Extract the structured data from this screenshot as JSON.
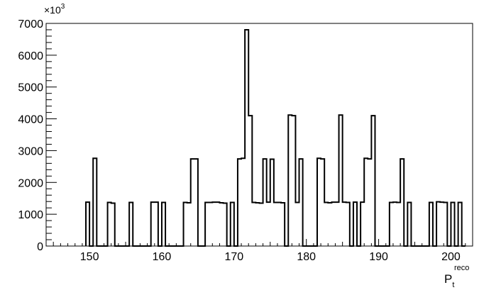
{
  "chart_data": {
    "type": "histogram",
    "xlim": [
      144,
      203
    ],
    "ylim": [
      0,
      7000
    ],
    "bin_width": 0.5,
    "x_ticks": [
      150,
      160,
      170,
      180,
      190,
      200
    ],
    "y_ticks": [
      0,
      1000,
      2000,
      3000,
      4000,
      5000,
      6000,
      7000
    ],
    "y_multiplier": {
      "base": "×10",
      "exponent": "3"
    },
    "xlabel": {
      "main": "P",
      "sub": "t",
      "sup": "reco"
    },
    "ylabel": "",
    "title": "",
    "grid": false,
    "bins": [
      {
        "x": 149.5,
        "y": 1380
      },
      {
        "x": 150.0,
        "y": 0
      },
      {
        "x": 150.5,
        "y": 2760
      },
      {
        "x": 151.0,
        "y": 0
      },
      {
        "x": 152.0,
        "y": 0
      },
      {
        "x": 152.5,
        "y": 1370
      },
      {
        "x": 153.0,
        "y": 1350
      },
      {
        "x": 153.5,
        "y": 0
      },
      {
        "x": 155.5,
        "y": 1370
      },
      {
        "x": 156.0,
        "y": 0
      },
      {
        "x": 158.5,
        "y": 1380
      },
      {
        "x": 159.0,
        "y": 1380
      },
      {
        "x": 159.5,
        "y": 0
      },
      {
        "x": 160.0,
        "y": 1370
      },
      {
        "x": 160.5,
        "y": 0
      },
      {
        "x": 163.0,
        "y": 1370
      },
      {
        "x": 163.5,
        "y": 1360
      },
      {
        "x": 164.0,
        "y": 2740
      },
      {
        "x": 164.5,
        "y": 2740
      },
      {
        "x": 165.0,
        "y": 0
      },
      {
        "x": 166.0,
        "y": 1370
      },
      {
        "x": 166.5,
        "y": 1370
      },
      {
        "x": 167.0,
        "y": 1380
      },
      {
        "x": 167.5,
        "y": 1380
      },
      {
        "x": 168.0,
        "y": 1360
      },
      {
        "x": 168.5,
        "y": 1350
      },
      {
        "x": 169.0,
        "y": 0
      },
      {
        "x": 169.5,
        "y": 1370
      },
      {
        "x": 170.0,
        "y": 0
      },
      {
        "x": 170.5,
        "y": 2740
      },
      {
        "x": 171.0,
        "y": 2760
      },
      {
        "x": 171.5,
        "y": 6800
      },
      {
        "x": 172.0,
        "y": 4100
      },
      {
        "x": 172.5,
        "y": 1370
      },
      {
        "x": 173.0,
        "y": 1360
      },
      {
        "x": 173.5,
        "y": 1350
      },
      {
        "x": 174.0,
        "y": 2740
      },
      {
        "x": 174.5,
        "y": 1380
      },
      {
        "x": 175.0,
        "y": 2730
      },
      {
        "x": 175.5,
        "y": 1370
      },
      {
        "x": 176.0,
        "y": 1370
      },
      {
        "x": 176.5,
        "y": 1360
      },
      {
        "x": 177.0,
        "y": 0
      },
      {
        "x": 177.5,
        "y": 4120
      },
      {
        "x": 178.0,
        "y": 4100
      },
      {
        "x": 178.5,
        "y": 1370
      },
      {
        "x": 179.0,
        "y": 2740
      },
      {
        "x": 179.5,
        "y": 0
      },
      {
        "x": 181.5,
        "y": 2760
      },
      {
        "x": 182.0,
        "y": 2740
      },
      {
        "x": 182.5,
        "y": 1370
      },
      {
        "x": 183.0,
        "y": 1360
      },
      {
        "x": 183.5,
        "y": 1380
      },
      {
        "x": 184.0,
        "y": 1380
      },
      {
        "x": 184.5,
        "y": 4120
      },
      {
        "x": 185.0,
        "y": 1380
      },
      {
        "x": 185.5,
        "y": 1370
      },
      {
        "x": 186.0,
        "y": 0
      },
      {
        "x": 186.5,
        "y": 1380
      },
      {
        "x": 187.0,
        "y": 0
      },
      {
        "x": 187.5,
        "y": 1380
      },
      {
        "x": 188.0,
        "y": 2760
      },
      {
        "x": 188.5,
        "y": 2740
      },
      {
        "x": 189.0,
        "y": 4100
      },
      {
        "x": 189.5,
        "y": 0
      },
      {
        "x": 191.5,
        "y": 1370
      },
      {
        "x": 192.0,
        "y": 1380
      },
      {
        "x": 192.5,
        "y": 1370
      },
      {
        "x": 193.0,
        "y": 2740
      },
      {
        "x": 193.5,
        "y": 0
      },
      {
        "x": 194.0,
        "y": 1370
      },
      {
        "x": 194.5,
        "y": 0
      },
      {
        "x": 197.0,
        "y": 1370
      },
      {
        "x": 197.5,
        "y": 0
      },
      {
        "x": 198.0,
        "y": 1390
      },
      {
        "x": 198.5,
        "y": 1380
      },
      {
        "x": 199.0,
        "y": 1370
      },
      {
        "x": 199.5,
        "y": 0
      },
      {
        "x": 200.0,
        "y": 1370
      },
      {
        "x": 200.5,
        "y": 0
      },
      {
        "x": 201.0,
        "y": 1370
      },
      {
        "x": 201.5,
        "y": 0
      }
    ]
  }
}
